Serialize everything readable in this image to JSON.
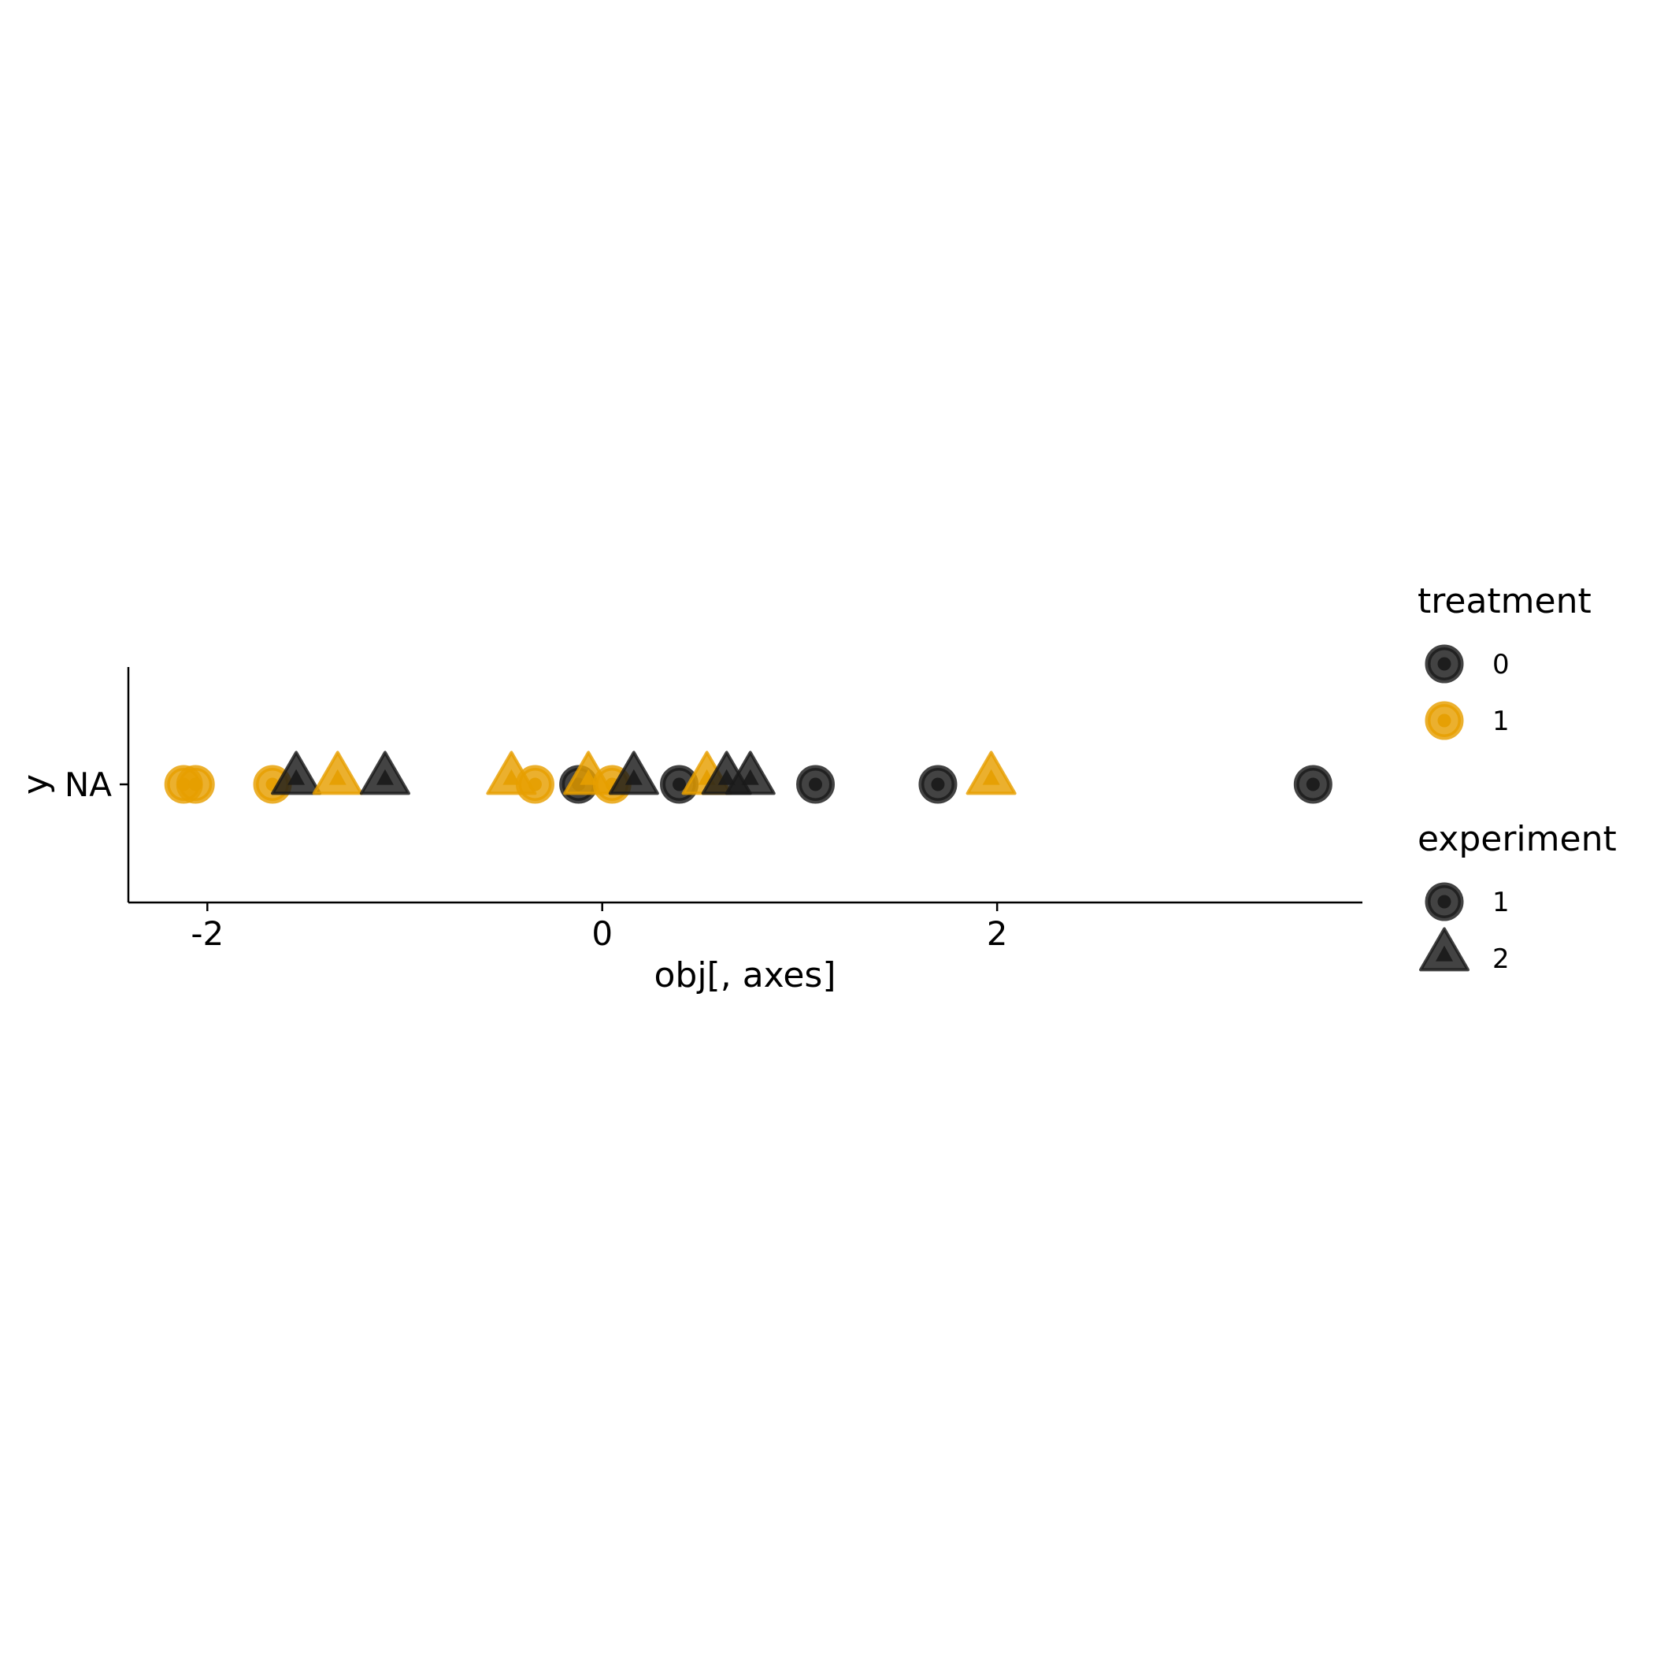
{
  "chart_data": {
    "type": "scatter",
    "xlabel": "obj[, axes]",
    "ylabel": "y",
    "y_category": "NA",
    "xlim": [
      -2.4,
      3.85
    ],
    "x_ticks": [
      -2,
      0,
      2
    ],
    "x_tick_labels": [
      "-2",
      "0",
      "2"
    ],
    "grid": false,
    "legend_position": "right",
    "colors": {
      "0": "#1a1a1a",
      "1": "#E69F00"
    },
    "legends": {
      "treatment": {
        "title": "treatment",
        "items": [
          {
            "label": "0",
            "value": "0"
          },
          {
            "label": "1",
            "value": "1"
          }
        ]
      },
      "experiment": {
        "title": "experiment",
        "items": [
          {
            "label": "1",
            "value": "1"
          },
          {
            "label": "2",
            "value": "2"
          }
        ]
      }
    },
    "points": [
      {
        "x": -2.12,
        "treatment": "1",
        "experiment": "1"
      },
      {
        "x": -2.06,
        "treatment": "1",
        "experiment": "1"
      },
      {
        "x": -1.67,
        "treatment": "1",
        "experiment": "1"
      },
      {
        "x": -1.55,
        "treatment": "0",
        "experiment": "2"
      },
      {
        "x": -1.34,
        "treatment": "1",
        "experiment": "2"
      },
      {
        "x": -1.1,
        "treatment": "0",
        "experiment": "2"
      },
      {
        "x": -0.46,
        "treatment": "1",
        "experiment": "2"
      },
      {
        "x": -0.34,
        "treatment": "1",
        "experiment": "1"
      },
      {
        "x": -0.12,
        "treatment": "0",
        "experiment": "1"
      },
      {
        "x": -0.07,
        "treatment": "1",
        "experiment": "2"
      },
      {
        "x": 0.05,
        "treatment": "1",
        "experiment": "1"
      },
      {
        "x": 0.16,
        "treatment": "0",
        "experiment": "2"
      },
      {
        "x": 0.39,
        "treatment": "0",
        "experiment": "1"
      },
      {
        "x": 0.53,
        "treatment": "1",
        "experiment": "2"
      },
      {
        "x": 0.63,
        "treatment": "0",
        "experiment": "2"
      },
      {
        "x": 0.75,
        "treatment": "0",
        "experiment": "2"
      },
      {
        "x": 1.08,
        "treatment": "0",
        "experiment": "1"
      },
      {
        "x": 1.7,
        "treatment": "0",
        "experiment": "1"
      },
      {
        "x": 1.97,
        "treatment": "1",
        "experiment": "2"
      },
      {
        "x": 3.6,
        "treatment": "0",
        "experiment": "1"
      }
    ]
  }
}
